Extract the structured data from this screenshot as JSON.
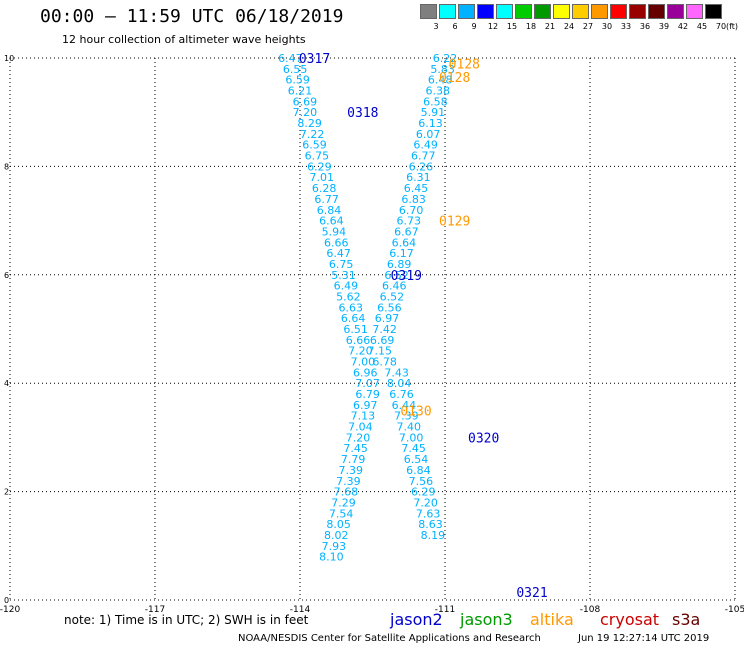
{
  "header": {
    "title": "00:00 – 11:59 UTC 06/18/2019",
    "subtitle": "12 hour collection of altimeter wave heights"
  },
  "color_scale": {
    "colors": [
      "#7f7f7f",
      "#00ffff",
      "#00b2ff",
      "#0000ff",
      "#00ffff",
      "#00cc00",
      "#009900",
      "#ffff00",
      "#ffcc00",
      "#ff9900",
      "#ff0000",
      "#990000",
      "#660000",
      "#990099",
      "#ff66ff",
      "#000000"
    ],
    "labels": [
      "3",
      "6",
      "9",
      "12",
      "15",
      "18",
      "21",
      "24",
      "27",
      "30",
      "33",
      "36",
      "39",
      "42",
      "45",
      "70"
    ],
    "unit": "(ft)"
  },
  "footer": {
    "note": "note: 1) Time is in UTC; 2) SWH is in feet",
    "satellites": [
      {
        "name": "jason2",
        "color": "#0000cc"
      },
      {
        "name": "jason3",
        "color": "#009900"
      },
      {
        "name": "altika",
        "color": "#ff9900"
      },
      {
        "name": "cryosat",
        "color": "#cc0000"
      },
      {
        "name": "s3a",
        "color": "#660000"
      }
    ],
    "credit": "NOAA/NESDIS Center for Satellite Applications and Research",
    "timestamp": "Jun 19 12:27:14 UTC 2019"
  },
  "chart_data": {
    "type": "scatter",
    "title": "00:00 – 11:59 UTC 06/18/2019",
    "subtitle": "12 hour collection of altimeter wave heights",
    "xlabel": "",
    "ylabel": "",
    "xlim": [
      -120,
      -105
    ],
    "ylim": [
      0,
      10
    ],
    "x_ticks": [
      "-120",
      "-117",
      "-114",
      "-111",
      "-108",
      "-105"
    ],
    "y_ticks": [
      "0",
      "2",
      "4",
      "6",
      "8",
      "10"
    ],
    "grid": true,
    "tracks": [
      {
        "name": "jason2",
        "color": "#00b2ff",
        "points": [
          {
            "x": -114.2,
            "y": 10.0,
            "v": "6.47"
          },
          {
            "x": -114.1,
            "y": 9.8,
            "v": "6.55"
          },
          {
            "x": -114.05,
            "y": 9.6,
            "v": "6.59"
          },
          {
            "x": -114.0,
            "y": 9.4,
            "v": "6.21"
          },
          {
            "x": -113.9,
            "y": 9.2,
            "v": "6.69"
          },
          {
            "x": -113.9,
            "y": 9.0,
            "v": "7.20"
          },
          {
            "x": -113.8,
            "y": 8.8,
            "v": "8.29"
          },
          {
            "x": -113.75,
            "y": 8.6,
            "v": "7.22"
          },
          {
            "x": -113.7,
            "y": 8.4,
            "v": "6.59"
          },
          {
            "x": -113.65,
            "y": 8.2,
            "v": "6.75"
          },
          {
            "x": -113.6,
            "y": 8.0,
            "v": "6.29"
          },
          {
            "x": -113.55,
            "y": 7.8,
            "v": "7.01"
          },
          {
            "x": -113.5,
            "y": 7.6,
            "v": "6.28"
          },
          {
            "x": -113.45,
            "y": 7.4,
            "v": "6.77"
          },
          {
            "x": -113.4,
            "y": 7.2,
            "v": "6.84"
          },
          {
            "x": -113.35,
            "y": 7.0,
            "v": "6.64"
          },
          {
            "x": -113.3,
            "y": 6.8,
            "v": "5.94"
          },
          {
            "x": -113.25,
            "y": 6.6,
            "v": "6.66"
          },
          {
            "x": -113.2,
            "y": 6.4,
            "v": "6.47"
          },
          {
            "x": -113.15,
            "y": 6.2,
            "v": "6.75"
          },
          {
            "x": -113.1,
            "y": 6.0,
            "v": "5.31"
          },
          {
            "x": -113.05,
            "y": 5.8,
            "v": "6.49"
          },
          {
            "x": -113.0,
            "y": 5.6,
            "v": "5.62"
          },
          {
            "x": -112.95,
            "y": 5.4,
            "v": "6.63"
          },
          {
            "x": -112.9,
            "y": 5.2,
            "v": "6.64"
          },
          {
            "x": -112.85,
            "y": 5.0,
            "v": "6.51"
          },
          {
            "x": -112.8,
            "y": 4.8,
            "v": "6.66"
          },
          {
            "x": -112.75,
            "y": 4.6,
            "v": "7.20"
          },
          {
            "x": -112.7,
            "y": 4.4,
            "v": "7.00"
          },
          {
            "x": -112.65,
            "y": 4.2,
            "v": "6.96"
          },
          {
            "x": -112.6,
            "y": 4.0,
            "v": "7.07"
          },
          {
            "x": -112.6,
            "y": 3.8,
            "v": "6.79"
          },
          {
            "x": -112.65,
            "y": 3.6,
            "v": "6.97"
          },
          {
            "x": -112.7,
            "y": 3.4,
            "v": "7.13"
          },
          {
            "x": -112.75,
            "y": 3.2,
            "v": "7.04"
          },
          {
            "x": -112.8,
            "y": 3.0,
            "v": "7.20"
          },
          {
            "x": -112.85,
            "y": 2.8,
            "v": "7.45"
          },
          {
            "x": -112.9,
            "y": 2.6,
            "v": "7.79"
          },
          {
            "x": -112.95,
            "y": 2.4,
            "v": "7.39"
          },
          {
            "x": -113.0,
            "y": 2.2,
            "v": "7.39"
          },
          {
            "x": -113.05,
            "y": 2.0,
            "v": "7.68"
          },
          {
            "x": -113.1,
            "y": 1.8,
            "v": "7.29"
          },
          {
            "x": -113.15,
            "y": 1.6,
            "v": "7.54"
          },
          {
            "x": -113.2,
            "y": 1.4,
            "v": "8.05"
          },
          {
            "x": -113.25,
            "y": 1.2,
            "v": "8.02"
          },
          {
            "x": -113.3,
            "y": 1.0,
            "v": "7.93"
          },
          {
            "x": -113.35,
            "y": 0.8,
            "v": "8.10"
          }
        ]
      },
      {
        "name": "jason2",
        "color": "#00b2ff",
        "points": [
          {
            "x": -111.0,
            "y": 10.0,
            "v": "6.22"
          },
          {
            "x": -111.05,
            "y": 9.8,
            "v": "5.83"
          },
          {
            "x": -111.1,
            "y": 9.6,
            "v": "6.48"
          },
          {
            "x": -111.15,
            "y": 9.4,
            "v": "6.38"
          },
          {
            "x": -111.2,
            "y": 9.2,
            "v": "6.58"
          },
          {
            "x": -111.25,
            "y": 9.0,
            "v": "5.91"
          },
          {
            "x": -111.3,
            "y": 8.8,
            "v": "6.13"
          },
          {
            "x": -111.35,
            "y": 8.6,
            "v": "6.07"
          },
          {
            "x": -111.4,
            "y": 8.4,
            "v": "6.49"
          },
          {
            "x": -111.45,
            "y": 8.2,
            "v": "6.77"
          },
          {
            "x": -111.5,
            "y": 8.0,
            "v": "6.26"
          },
          {
            "x": -111.55,
            "y": 7.8,
            "v": "6.31"
          },
          {
            "x": -111.6,
            "y": 7.6,
            "v": "6.45"
          },
          {
            "x": -111.65,
            "y": 7.4,
            "v": "6.83"
          },
          {
            "x": -111.7,
            "y": 7.2,
            "v": "6.70"
          },
          {
            "x": -111.75,
            "y": 7.0,
            "v": "6.73"
          },
          {
            "x": -111.8,
            "y": 6.8,
            "v": "6.67"
          },
          {
            "x": -111.85,
            "y": 6.6,
            "v": "6.64"
          },
          {
            "x": -111.9,
            "y": 6.4,
            "v": "6.17"
          },
          {
            "x": -111.95,
            "y": 6.2,
            "v": "6.89"
          },
          {
            "x": -112.0,
            "y": 6.0,
            "v": "6.52"
          },
          {
            "x": -112.05,
            "y": 5.8,
            "v": "6.46"
          },
          {
            "x": -112.1,
            "y": 5.6,
            "v": "6.52"
          },
          {
            "x": -112.15,
            "y": 5.4,
            "v": "6.56"
          },
          {
            "x": -112.2,
            "y": 5.2,
            "v": "6.97"
          },
          {
            "x": -112.25,
            "y": 5.0,
            "v": "7.42"
          },
          {
            "x": -112.3,
            "y": 4.8,
            "v": "6.69"
          },
          {
            "x": -112.35,
            "y": 4.6,
            "v": "7.15"
          },
          {
            "x": -112.25,
            "y": 4.4,
            "v": "6.78"
          },
          {
            "x": -112.0,
            "y": 4.2,
            "v": "7.43"
          },
          {
            "x": -111.95,
            "y": 4.0,
            "v": "8.04"
          },
          {
            "x": -111.9,
            "y": 3.8,
            "v": "6.76"
          },
          {
            "x": -111.85,
            "y": 3.6,
            "v": "6.44"
          },
          {
            "x": -111.8,
            "y": 3.4,
            "v": "7.39"
          },
          {
            "x": -111.75,
            "y": 3.2,
            "v": "7.40"
          },
          {
            "x": -111.7,
            "y": 3.0,
            "v": "7.00"
          },
          {
            "x": -111.65,
            "y": 2.8,
            "v": "7.45"
          },
          {
            "x": -111.6,
            "y": 2.6,
            "v": "6.54"
          },
          {
            "x": -111.55,
            "y": 2.4,
            "v": "6.84"
          },
          {
            "x": -111.5,
            "y": 2.2,
            "v": "7.56"
          },
          {
            "x": -111.45,
            "y": 2.0,
            "v": "6.29"
          },
          {
            "x": -111.4,
            "y": 1.8,
            "v": "7.20"
          },
          {
            "x": -111.35,
            "y": 1.6,
            "v": "7.63"
          },
          {
            "x": -111.3,
            "y": 1.4,
            "v": "8.63"
          },
          {
            "x": -111.25,
            "y": 1.2,
            "v": "8.19"
          }
        ]
      }
    ],
    "pass_labels": [
      {
        "text": "0317",
        "x": -113.7,
        "y": 10.0,
        "satellite": "jason2"
      },
      {
        "text": "0318",
        "x": -112.7,
        "y": 9.0,
        "satellite": "jason2"
      },
      {
        "text": "0319",
        "x": -111.8,
        "y": 6.0,
        "satellite": "jason2"
      },
      {
        "text": "0320",
        "x": -110.2,
        "y": 3.0,
        "satellite": "jason2"
      },
      {
        "text": "0321",
        "x": -109.2,
        "y": 0.15,
        "satellite": "jason2"
      },
      {
        "text": "0128",
        "x": -110.6,
        "y": 9.9,
        "satellite": "altika"
      },
      {
        "text": "0128",
        "x": -110.8,
        "y": 9.65,
        "satellite": "altika"
      },
      {
        "text": "0129",
        "x": -110.8,
        "y": 7.0,
        "satellite": "altika"
      },
      {
        "text": "0130",
        "x": -111.6,
        "y": 3.5,
        "satellite": "altika"
      }
    ]
  }
}
